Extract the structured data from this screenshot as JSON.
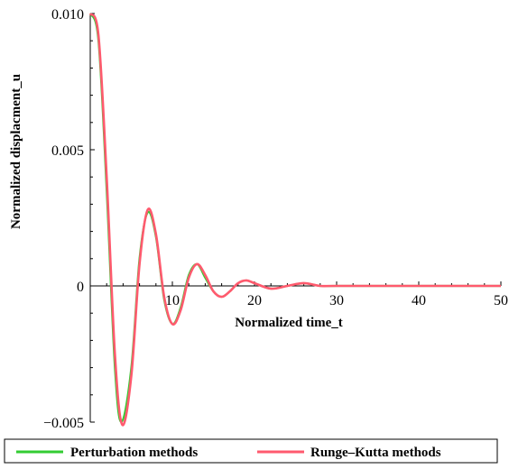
{
  "chart_data": {
    "type": "line",
    "title": "",
    "xlabel": "Normalized time_t",
    "ylabel": "Normalized displacment_u",
    "xlim": [
      0,
      50
    ],
    "ylim": [
      -0.005,
      0.01
    ],
    "x_ticks": [
      10,
      20,
      30,
      40,
      50
    ],
    "x_tick_labels": [
      "10",
      "20",
      "30",
      "40",
      "50"
    ],
    "y_ticks": [
      -0.005,
      0,
      0.005,
      0.01
    ],
    "y_tick_labels": [
      "−0.005",
      "0",
      "0.005",
      "0.010"
    ],
    "grid": false,
    "legend_position": "bottom",
    "series": [
      {
        "name": "Perturbation methods",
        "color": "#33cc33",
        "points": [
          [
            0,
            0.01
          ],
          [
            1,
            0.009
          ],
          [
            2,
            0.0035
          ],
          [
            3,
            -0.003
          ],
          [
            3.8,
            -0.005
          ],
          [
            5,
            -0.003
          ],
          [
            6,
            0.001
          ],
          [
            7,
            0.0027
          ],
          [
            8,
            0.0018
          ],
          [
            9,
            -0.0005
          ],
          [
            10,
            -0.0014
          ],
          [
            11,
            -0.0008
          ],
          [
            12,
            0.0004
          ],
          [
            13,
            0.0008
          ],
          [
            14,
            0.0003
          ],
          [
            15,
            -0.0002
          ],
          [
            16,
            -0.0004
          ],
          [
            17,
            -0.0002
          ],
          [
            18,
            0.0001
          ],
          [
            19,
            0.0002
          ],
          [
            20,
            0.0001
          ],
          [
            22,
            -0.0001
          ],
          [
            24,
            0.0
          ],
          [
            26,
            0.0001
          ],
          [
            28,
            0.0
          ],
          [
            30,
            0.0
          ],
          [
            40,
            0.0
          ],
          [
            50,
            0.0
          ]
        ]
      },
      {
        "name": "Runge–Kutta methods",
        "color": "#ff5a6e",
        "points": [
          [
            0,
            0.01
          ],
          [
            1,
            0.0092
          ],
          [
            2,
            0.004
          ],
          [
            3,
            -0.0025
          ],
          [
            3.9,
            -0.0051
          ],
          [
            5,
            -0.0033
          ],
          [
            6,
            0.0008
          ],
          [
            7,
            0.0028
          ],
          [
            8,
            0.0019
          ],
          [
            9,
            -0.0004
          ],
          [
            10,
            -0.0014
          ],
          [
            11,
            -0.0009
          ],
          [
            12,
            0.0003
          ],
          [
            13,
            0.0008
          ],
          [
            14,
            0.0004
          ],
          [
            15,
            -0.0002
          ],
          [
            16,
            -0.0004
          ],
          [
            17,
            -0.0002
          ],
          [
            18,
            0.0001
          ],
          [
            19,
            0.0002
          ],
          [
            20,
            0.0001
          ],
          [
            22,
            -0.0001
          ],
          [
            24,
            0.0
          ],
          [
            26,
            0.0001
          ],
          [
            28,
            0.0
          ],
          [
            30,
            0.0
          ],
          [
            40,
            0.0
          ],
          [
            50,
            0.0
          ]
        ]
      }
    ]
  }
}
